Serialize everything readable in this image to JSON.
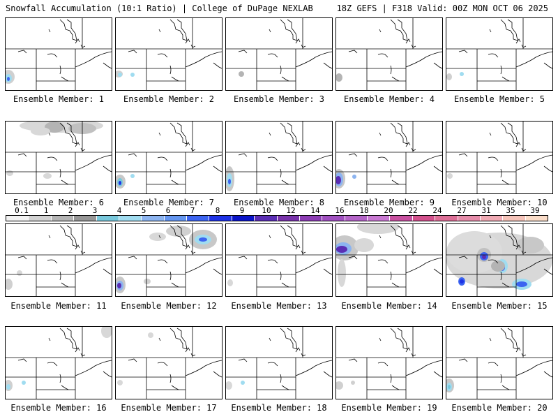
{
  "header": {
    "left": "Snowfall Accumulation (10:1 Ratio) | College of DuPage NEXLAB",
    "right": "18Z GEFS | F318 Valid: 00Z MON OCT 06 2025"
  },
  "legend": {
    "ticks": [
      "0.1",
      "1",
      "2",
      "3",
      "4",
      "5",
      "6",
      "7",
      "8",
      "9",
      "10",
      "12",
      "14",
      "16",
      "18",
      "20",
      "22",
      "24",
      "27",
      "31",
      "35",
      "39"
    ],
    "colors": [
      "#f2f2f2",
      "#d2d2d2",
      "#b4b4b4",
      "#969696",
      "#78c8dc",
      "#a0dcf0",
      "#8cb4f0",
      "#6496f0",
      "#3c64f0",
      "#1e32e6",
      "#0a14c8",
      "#5a2db4",
      "#7832aa",
      "#8c3cb4",
      "#a050c0",
      "#b464c8",
      "#c878d2",
      "#c850a0",
      "#d2508c",
      "#dc6e96",
      "#e68caa",
      "#f0aab4",
      "#f5c3b9",
      "#fadcc8"
    ]
  },
  "panels": [
    {
      "label": "Ensemble Member: 1",
      "blobs": [
        [
          4,
          84,
          9,
          10,
          "#d0d0d0"
        ],
        [
          4,
          86,
          5,
          6,
          "#a0dcf0"
        ],
        [
          4,
          87,
          2,
          3,
          "#3c64f0"
        ]
      ]
    },
    {
      "label": "Ensemble Member: 2",
      "blobs": [
        [
          4,
          80,
          6,
          5,
          "#d0d0d0"
        ],
        [
          24,
          81,
          3,
          3,
          "#a0dcf0"
        ],
        [
          6,
          81,
          3,
          3,
          "#a0dcf0"
        ]
      ]
    },
    {
      "label": "Ensemble Member: 3",
      "blobs": [
        [
          22,
          80,
          4,
          4,
          "#b4b4b4"
        ]
      ]
    },
    {
      "label": "Ensemble Member: 4",
      "blobs": [
        [
          4,
          85,
          5,
          6,
          "#b4b4b4"
        ]
      ]
    },
    {
      "label": "Ensemble Member: 5",
      "blobs": [
        [
          22,
          80,
          3,
          3,
          "#a0dcf0"
        ],
        [
          4,
          84,
          4,
          5,
          "#d0d0d0"
        ]
      ]
    },
    {
      "label": "Ensemble Member: 6",
      "blobs": [
        [
          80,
          6,
          60,
          10,
          "#d8d8d8"
        ],
        [
          70,
          8,
          14,
          8,
          "#b4b4b4"
        ],
        [
          110,
          10,
          20,
          8,
          "#c0c0c0"
        ],
        [
          50,
          14,
          14,
          6,
          "#d8d8d8"
        ],
        [
          6,
          74,
          5,
          4,
          "#d8d8d8"
        ],
        [
          60,
          78,
          6,
          4,
          "#d8d8d8"
        ]
      ]
    },
    {
      "label": "Ensemble Member: 7",
      "blobs": [
        [
          6,
          86,
          8,
          10,
          "#c8c8c8"
        ],
        [
          6,
          87,
          4,
          6,
          "#78c8dc"
        ],
        [
          6,
          88,
          2,
          3,
          "#1e32e6"
        ],
        [
          24,
          78,
          3,
          3,
          "#a0dcf0"
        ]
      ]
    },
    {
      "label": "Ensemble Member: 8",
      "blobs": [
        [
          5,
          82,
          7,
          18,
          "#c8c8c8"
        ],
        [
          5,
          84,
          4,
          10,
          "#a0dcf0"
        ],
        [
          5,
          86,
          2,
          4,
          "#3c64f0"
        ]
      ]
    },
    {
      "label": "Ensemble Member: 9",
      "blobs": [
        [
          4,
          82,
          9,
          14,
          "#c8c8c8"
        ],
        [
          4,
          83,
          6,
          10,
          "#8cb4f0"
        ],
        [
          3,
          84,
          4,
          6,
          "#5a2db4"
        ],
        [
          26,
          79,
          3,
          3,
          "#8cb4f0"
        ]
      ]
    },
    {
      "label": "Ensemble Member: 10",
      "blobs": [
        [
          5,
          78,
          4,
          4,
          "#d8d8d8"
        ]
      ]
    },
    {
      "label": "Ensemble Member: 11",
      "blobs": [
        [
          4,
          86,
          6,
          8,
          "#d0d0d0"
        ],
        [
          20,
          70,
          4,
          4,
          "#d8d8d8"
        ]
      ]
    },
    {
      "label": "Ensemble Member: 12",
      "blobs": [
        [
          125,
          22,
          20,
          14,
          "#c8c8c8"
        ],
        [
          125,
          22,
          12,
          7,
          "#a0dcf0"
        ],
        [
          125,
          22,
          6,
          3,
          "#3c64f0"
        ],
        [
          90,
          10,
          18,
          8,
          "#d0d0d0"
        ],
        [
          60,
          18,
          12,
          6,
          "#d8d8d8"
        ],
        [
          6,
          87,
          8,
          12,
          "#c8c8c8"
        ],
        [
          6,
          88,
          5,
          7,
          "#8cb4f0"
        ],
        [
          5,
          88,
          3,
          4,
          "#5a2db4"
        ],
        [
          45,
          82,
          5,
          4,
          "#d0d0d0"
        ]
      ]
    },
    {
      "label": "Ensemble Member: 13",
      "blobs": [
        [
          6,
          84,
          4,
          5,
          "#d8d8d8"
        ]
      ]
    },
    {
      "label": "Ensemble Member: 14",
      "blobs": [
        [
          12,
          34,
          20,
          18,
          "#c8c8c8"
        ],
        [
          10,
          35,
          12,
          9,
          "#8cb4f0"
        ],
        [
          8,
          36,
          8,
          5,
          "#5a2db4"
        ],
        [
          60,
          4,
          30,
          10,
          "#d8d8d8"
        ],
        [
          40,
          30,
          14,
          10,
          "#d8d8d8"
        ],
        [
          8,
          70,
          6,
          20,
          "#d8d8d8"
        ]
      ]
    },
    {
      "label": "Ensemble Member: 15",
      "blobs": [
        [
          76,
          52,
          76,
          40,
          "#d8d8d8"
        ],
        [
          40,
          40,
          40,
          30,
          "#dcdcdc"
        ],
        [
          54,
          44,
          10,
          10,
          "#c0c0c0"
        ],
        [
          54,
          46,
          6,
          6,
          "#3c64f0"
        ],
        [
          54,
          47,
          3,
          3,
          "#5a2db4"
        ],
        [
          80,
          60,
          8,
          10,
          "#a0dcf0"
        ],
        [
          80,
          62,
          4,
          5,
          "#3c64f0"
        ],
        [
          108,
          86,
          14,
          8,
          "#a0dcf0"
        ],
        [
          108,
          86,
          8,
          4,
          "#3c64f0"
        ],
        [
          22,
          82,
          5,
          6,
          "#3c64f0"
        ],
        [
          22,
          82,
          3,
          3,
          "#1e32e6"
        ],
        [
          74,
          60,
          10,
          8,
          "#b4b4b4"
        ],
        [
          120,
          30,
          20,
          12,
          "#c8c8c8"
        ]
      ]
    },
    {
      "label": "Ensemble Member: 16",
      "blobs": [
        [
          4,
          84,
          6,
          8,
          "#d0d0d0"
        ],
        [
          4,
          86,
          3,
          4,
          "#a0dcf0"
        ],
        [
          26,
          80,
          3,
          3,
          "#a0dcf0"
        ],
        [
          145,
          6,
          8,
          10,
          "#d8d8d8"
        ]
      ]
    },
    {
      "label": "Ensemble Member: 17",
      "blobs": [
        [
          6,
          80,
          4,
          4,
          "#d8d8d8"
        ],
        [
          50,
          12,
          4,
          4,
          "#d8d8d8"
        ]
      ]
    },
    {
      "label": "Ensemble Member: 18",
      "blobs": [
        [
          4,
          84,
          5,
          6,
          "#d8d8d8"
        ],
        [
          24,
          80,
          3,
          3,
          "#a0dcf0"
        ]
      ]
    },
    {
      "label": "Ensemble Member: 19",
      "blobs": [
        [
          4,
          84,
          6,
          6,
          "#d0d0d0"
        ],
        [
          24,
          80,
          3,
          3,
          "#d0d0d0"
        ]
      ]
    },
    {
      "label": "Ensemble Member: 20",
      "blobs": [
        [
          4,
          84,
          7,
          10,
          "#c8c8c8"
        ],
        [
          4,
          86,
          4,
          6,
          "#a0dcf0"
        ],
        [
          4,
          86,
          2,
          3,
          "#78c8dc"
        ]
      ]
    }
  ]
}
